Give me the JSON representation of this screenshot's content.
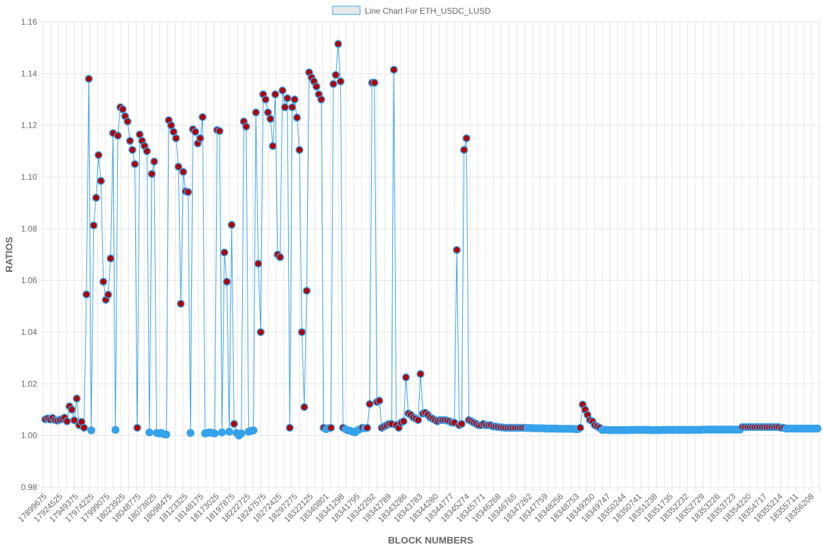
{
  "chart_data": {
    "type": "line",
    "legend": {
      "label": "Line Chart For ETH_USDC_LUSD",
      "position": "top"
    },
    "xlabel": "BLOCK NUMBERS",
    "ylabel": "RATIOS",
    "ylim": [
      0.98,
      1.16
    ],
    "y_ticks": [
      "0.98",
      "1.00",
      "1.02",
      "1.04",
      "1.06",
      "1.08",
      "1.10",
      "1.12",
      "1.14",
      "1.16"
    ],
    "x_ticks": [
      "17899675",
      "17924525",
      "17949375",
      "17974225",
      "17999075",
      "18023925",
      "18048775",
      "18073625",
      "18098475",
      "18123325",
      "18148175",
      "18173025",
      "18197875",
      "18222725",
      "18247575",
      "18272425",
      "18297275",
      "18322125",
      "18340801",
      "18341298",
      "18341795",
      "18342292",
      "18342789",
      "18343286",
      "18343783",
      "18344280",
      "18344777",
      "18345274",
      "18345771",
      "18346268",
      "18346765",
      "18347262",
      "18347759",
      "18348256",
      "18348753",
      "18349250",
      "18349747",
      "18350244",
      "18350741",
      "18351238",
      "18351735",
      "18352232",
      "18352729",
      "18353226",
      "18353723",
      "18354220",
      "18354717",
      "18355214",
      "18355711",
      "18356208"
    ],
    "grid": true,
    "colors": {
      "line": "#36a2eb",
      "point_normal": "#36a2eb",
      "point_high": "#b30000",
      "point_border": "#36a2eb",
      "grid": "#e5e5e5"
    },
    "series": [
      {
        "name": "Line Chart For ETH_USDC_LUSD",
        "values": [
          1.0063,
          1.0066,
          1.0062,
          1.0068,
          1.006,
          1.0058,
          1.0061,
          1.0064,
          1.0069,
          1.0055,
          1.0113,
          1.01,
          1.0059,
          1.0143,
          1.004,
          1.0053,
          1.003,
          1.0546,
          1.138,
          1.002,
          1.0813,
          1.092,
          1.1085,
          1.0985,
          1.0595,
          1.0525,
          1.0545,
          1.0685,
          1.117,
          1.0022,
          1.116,
          1.127,
          1.1262,
          1.1235,
          1.1215,
          1.114,
          1.1105,
          1.105,
          1.003,
          1.1165,
          1.114,
          1.112,
          1.11,
          1.0012,
          1.1012,
          1.106,
          1.001,
          1.0008,
          1.001,
          1.0005,
          1.0004,
          1.122,
          1.12,
          1.1175,
          1.115,
          1.104,
          1.051,
          1.102,
          1.0945,
          1.0942,
          1.001,
          1.1185,
          1.1175,
          1.113,
          1.115,
          1.1232,
          1.0008,
          1.001,
          1.0012,
          1.001,
          1.0008,
          1.1182,
          1.1178,
          1.0012,
          1.0708,
          1.0595,
          1.0015,
          1.0815,
          1.0045,
          1.001,
          1.0,
          1.0008,
          1.1215,
          1.1195,
          1.0015,
          1.0018,
          1.002,
          1.125,
          1.0665,
          1.04,
          1.132,
          1.13,
          1.125,
          1.1225,
          1.112,
          1.132,
          1.07,
          1.069,
          1.1335,
          1.127,
          1.1305,
          1.003,
          1.127,
          1.13,
          1.123,
          1.1105,
          1.04,
          1.011,
          1.056,
          1.1405,
          1.1385,
          1.137,
          1.135,
          1.132,
          1.13,
          1.003,
          1.0025,
          1.0028,
          1.003,
          1.136,
          1.1395,
          1.1515,
          1.137,
          1.003,
          1.0025,
          1.002,
          1.0018,
          1.0015,
          1.0012,
          1.002,
          1.0025,
          1.003,
          1.0028,
          1.003,
          1.0122,
          1.1365,
          1.1365,
          1.013,
          1.0135,
          1.003,
          1.0035,
          1.004,
          1.0045,
          1.0045,
          1.1415,
          1.004,
          1.003,
          1.005,
          1.0055,
          1.0225,
          1.0085,
          1.008,
          1.007,
          1.0065,
          1.006,
          1.0238,
          1.0085,
          1.0088,
          1.008,
          1.007,
          1.0065,
          1.006,
          1.0055,
          1.006,
          1.006,
          1.006,
          1.0058,
          1.0055,
          1.005,
          1.005,
          1.0718,
          1.004,
          1.0045,
          1.1105,
          1.115,
          1.006,
          1.0055,
          1.005,
          1.0045,
          1.004,
          1.004,
          1.0045,
          1.004,
          1.004,
          1.004,
          1.0035,
          1.0035,
          1.0033,
          1.0032,
          1.0031,
          1.003,
          1.003,
          1.003,
          1.003,
          1.003,
          1.003,
          1.003,
          1.003,
          1.003,
          1.0029,
          1.0029,
          1.0029,
          1.0028,
          1.0028,
          1.0028,
          1.0028,
          1.0028,
          1.0027,
          1.0027,
          1.0027,
          1.0027,
          1.0027,
          1.0026,
          1.0026,
          1.0026,
          1.0026,
          1.0026,
          1.0026,
          1.0026,
          1.0025,
          1.0025,
          1.003,
          1.012,
          1.01,
          1.008,
          1.006,
          1.0055,
          1.004,
          1.0035,
          1.003,
          1.0022,
          1.0022,
          1.0022,
          1.0021,
          1.0021,
          1.0021,
          1.0021,
          1.0021,
          1.0021,
          1.0021,
          1.0021,
          1.0021,
          1.0022,
          1.0022,
          1.0022,
          1.0022,
          1.0022,
          1.0022,
          1.0022,
          1.0022,
          1.0021,
          1.0021,
          1.0021,
          1.0021,
          1.0021,
          1.0022,
          1.0022,
          1.0022,
          1.0022,
          1.0022,
          1.0022,
          1.0022,
          1.0022,
          1.0022,
          1.0022,
          1.0022,
          1.0022,
          1.0022,
          1.0022,
          1.0022,
          1.0022,
          1.0022,
          1.0023,
          1.0023,
          1.0023,
          1.0023,
          1.0023,
          1.0023,
          1.0023,
          1.0023,
          1.0023,
          1.0023,
          1.0023,
          1.0023,
          1.0023,
          1.0023,
          1.0023,
          1.0023,
          1.0033,
          1.0033,
          1.0033,
          1.0033,
          1.0033,
          1.0033,
          1.0033,
          1.0033,
          1.0033,
          1.0033,
          1.0033,
          1.0033,
          1.0033,
          1.0033,
          1.0033,
          1.0033,
          1.003,
          1.003,
          1.0027,
          1.0027,
          1.0027,
          1.0027,
          1.0027,
          1.0027,
          1.0027,
          1.0027,
          1.0027,
          1.0027,
          1.0027,
          1.0027,
          1.0027,
          1.0027
        ]
      }
    ]
  }
}
